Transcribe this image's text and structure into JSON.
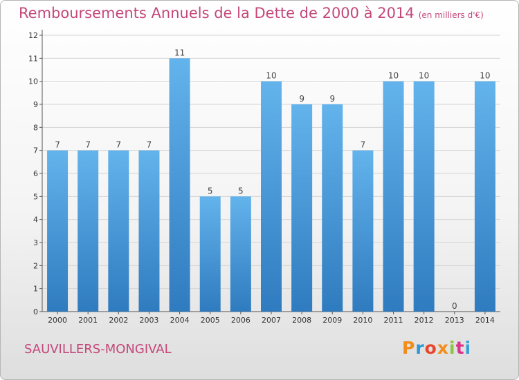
{
  "header": {
    "title": "Remboursements Annuels de la Dette de 2000 à 2014",
    "unit": "(en milliers d'€)"
  },
  "footer": {
    "city": "SAUVILLERS-MONGIVAL",
    "logo_text": "Proxiti",
    "logo_colors": [
      "#f28c1a",
      "#2b9ad4",
      "#e8462c",
      "#f28c1a",
      "#8bc43f",
      "#d9338a",
      "#3aa0d8"
    ]
  },
  "colors": {
    "bar_top": "#63b3ec",
    "bar_bottom": "#2f7bbf",
    "title": "#c4477a"
  },
  "chart_data": {
    "type": "bar",
    "categories": [
      "2000",
      "2001",
      "2002",
      "2003",
      "2004",
      "2005",
      "2006",
      "2007",
      "2008",
      "2009",
      "2010",
      "2011",
      "2012",
      "2013",
      "2014"
    ],
    "values": [
      7,
      7,
      7,
      7,
      11,
      5,
      5,
      10,
      9,
      9,
      7,
      10,
      10,
      0,
      10
    ],
    "data_labels": [
      "7",
      "7",
      "7",
      "7",
      "11",
      "5",
      "5",
      "10",
      "9",
      "9",
      "7",
      "10",
      "10",
      "0",
      "10"
    ],
    "y_ticks": [
      "0",
      "1",
      "2",
      "3",
      "4",
      "5",
      "6",
      "7",
      "8",
      "9",
      "10",
      "11",
      "12"
    ],
    "ylim": [
      0,
      12
    ],
    "grid": true,
    "title": "Remboursements Annuels de la Dette de 2000 à 2014",
    "xlabel": "",
    "ylabel": ""
  }
}
